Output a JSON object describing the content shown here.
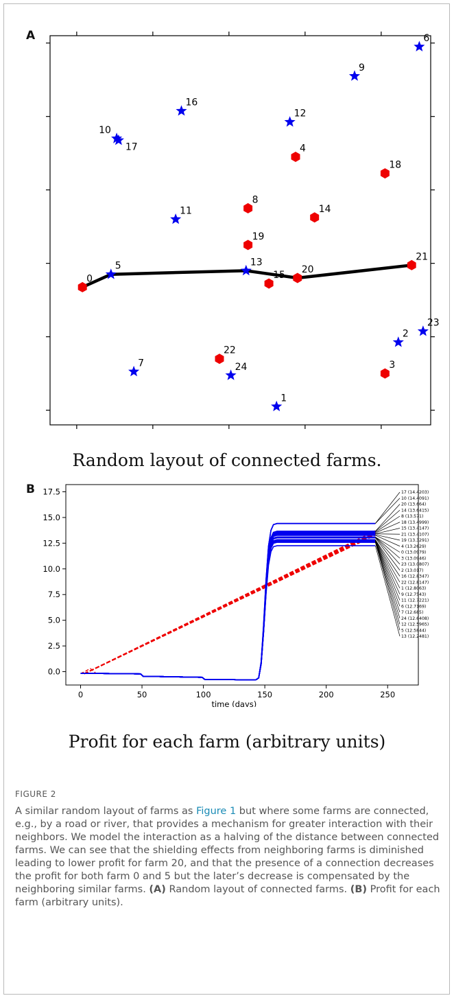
{
  "panel_a": {
    "letter": "A",
    "caption": "Random layout of connected farms.",
    "chart_data": {
      "type": "scatter",
      "title": "",
      "xlabel": "",
      "ylabel": "",
      "xlim": [
        -0.7,
        9.3
      ],
      "ylim": [
        -0.4,
        10.2
      ],
      "xticks": [
        0,
        2,
        4,
        6,
        8
      ],
      "yticks": [
        0,
        2,
        4,
        6,
        8,
        10
      ],
      "tick_labels_shown": false,
      "grid": false,
      "legend": "none",
      "colors": {
        "star": "#0000ee",
        "hexagon": "#ee0000",
        "connection": "#000000"
      },
      "farms": [
        {
          "id": "0",
          "x": 0.15,
          "y": 3.35,
          "marker": "hexagon"
        },
        {
          "id": "1",
          "x": 5.25,
          "y": 0.1,
          "marker": "star"
        },
        {
          "id": "2",
          "x": 8.45,
          "y": 1.85,
          "marker": "star"
        },
        {
          "id": "3",
          "x": 8.1,
          "y": 1.0,
          "marker": "hexagon"
        },
        {
          "id": "4",
          "x": 5.75,
          "y": 6.9,
          "marker": "hexagon"
        },
        {
          "id": "5",
          "x": 0.9,
          "y": 3.7,
          "marker": "star"
        },
        {
          "id": "6",
          "x": 9.0,
          "y": 9.9,
          "marker": "star"
        },
        {
          "id": "7",
          "x": 1.5,
          "y": 1.05,
          "marker": "star"
        },
        {
          "id": "8",
          "x": 4.5,
          "y": 5.5,
          "marker": "hexagon"
        },
        {
          "id": "9",
          "x": 7.3,
          "y": 9.1,
          "marker": "star"
        },
        {
          "id": "10",
          "x": 1.05,
          "y": 7.4,
          "marker": "star"
        },
        {
          "id": "11",
          "x": 2.6,
          "y": 5.2,
          "marker": "star"
        },
        {
          "id": "12",
          "x": 5.6,
          "y": 7.85,
          "marker": "star"
        },
        {
          "id": "13",
          "x": 4.45,
          "y": 3.8,
          "marker": "star"
        },
        {
          "id": "14",
          "x": 6.25,
          "y": 5.25,
          "marker": "hexagon"
        },
        {
          "id": "15",
          "x": 5.05,
          "y": 3.45,
          "marker": "hexagon"
        },
        {
          "id": "16",
          "x": 2.75,
          "y": 8.15,
          "marker": "star"
        },
        {
          "id": "17",
          "x": 1.1,
          "y": 7.35,
          "marker": "star"
        },
        {
          "id": "18",
          "x": 8.1,
          "y": 6.45,
          "marker": "hexagon"
        },
        {
          "id": "19",
          "x": 4.5,
          "y": 4.5,
          "marker": "hexagon"
        },
        {
          "id": "20",
          "x": 5.8,
          "y": 3.6,
          "marker": "hexagon"
        },
        {
          "id": "21",
          "x": 8.8,
          "y": 3.95,
          "marker": "hexagon"
        },
        {
          "id": "22",
          "x": 3.75,
          "y": 1.4,
          "marker": "hexagon"
        },
        {
          "id": "23",
          "x": 9.1,
          "y": 2.15,
          "marker": "star"
        },
        {
          "id": "24",
          "x": 4.05,
          "y": 0.95,
          "marker": "star"
        }
      ],
      "connection": [
        "0",
        "5",
        "13",
        "20",
        "21"
      ]
    }
  },
  "panel_b": {
    "letter": "B",
    "caption": "Profit for each farm (arbitrary units)",
    "chart_data": {
      "type": "line",
      "title": "",
      "xlabel": "time (days)",
      "ylabel": "",
      "xlim": [
        -12,
        275
      ],
      "ylim": [
        -1.3,
        18.2
      ],
      "xticks": [
        0,
        50,
        100,
        150,
        200,
        250
      ],
      "yticks": [
        0.0,
        2.5,
        5.0,
        7.5,
        10.0,
        12.5,
        15.0,
        17.5
      ],
      "grid": false,
      "colors": {
        "profit_lines": "#0000ee",
        "dashed_lines": "#ee0000",
        "leader_lines": "#000000"
      },
      "timeline": {
        "days": [
          0,
          49,
          51,
          99,
          101,
          140,
          143,
          145,
          147,
          149,
          151,
          153,
          155,
          157,
          160,
          240
        ],
        "baseline_profit": [
          -0.15,
          -0.22,
          -0.45,
          -0.55,
          -0.75,
          -0.8,
          -0.78,
          -0.6,
          0.8,
          4.0,
          8.0,
          11.0,
          12.4,
          12.9,
          13.0,
          13.0
        ]
      },
      "final_values": [
        {
          "farm": "17",
          "value": 14.4203
        },
        {
          "farm": "10",
          "value": 14.4091
        },
        {
          "farm": "20",
          "value": 13.664
        },
        {
          "farm": "14",
          "value": 13.6415
        },
        {
          "farm": "8",
          "value": 13.571
        },
        {
          "farm": "18",
          "value": 13.4999
        },
        {
          "farm": "15",
          "value": 13.4147
        },
        {
          "farm": "21",
          "value": 13.4107
        },
        {
          "farm": "19",
          "value": 13.3291
        },
        {
          "farm": "4",
          "value": 13.2629
        },
        {
          "farm": "0",
          "value": 13.0979
        },
        {
          "farm": "3",
          "value": 13.0946
        },
        {
          "farm": "23",
          "value": 13.0807
        },
        {
          "farm": "2",
          "value": 13.017
        },
        {
          "farm": "16",
          "value": 12.8347
        },
        {
          "farm": "22",
          "value": 12.8147
        },
        {
          "farm": "1",
          "value": 12.8063
        },
        {
          "farm": "9",
          "value": 12.7543
        },
        {
          "farm": "11",
          "value": 12.7221
        },
        {
          "farm": "6",
          "value": 12.7169
        },
        {
          "farm": "7",
          "value": 12.685
        },
        {
          "farm": "24",
          "value": 12.6408
        },
        {
          "farm": "12",
          "value": 12.5965
        },
        {
          "farm": "5",
          "value": 12.5844
        },
        {
          "farm": "13",
          "value": 12.2481
        }
      ],
      "dashed_trend": {
        "x": [
          0,
          240
        ],
        "y": [
          -0.2,
          13.6
        ]
      }
    }
  },
  "caption": {
    "label": "FIGURE 2",
    "text_before_link": "A similar random layout of farms as ",
    "link": "Figure 1",
    "text_after_link": " but where some farms are connected, e.g., by a road or river, that provides a mechanism for greater interaction with their neighbors. We model the interaction as a halving of the distance between connected farms. We can see that the shielding effects from neighboring farms is diminished leading to lower profit for farm 20, and that the presence of a connection decreases the profit for both farm 0 and 5 but the later’s decrease is compensated by the neighboring similar farms. ",
    "panel_a_ref": "(A)",
    "panel_a_text": " Random layout of connected farms. ",
    "panel_b_ref": "(B)",
    "panel_b_text": " Profit for each farm (arbitrary units)."
  }
}
